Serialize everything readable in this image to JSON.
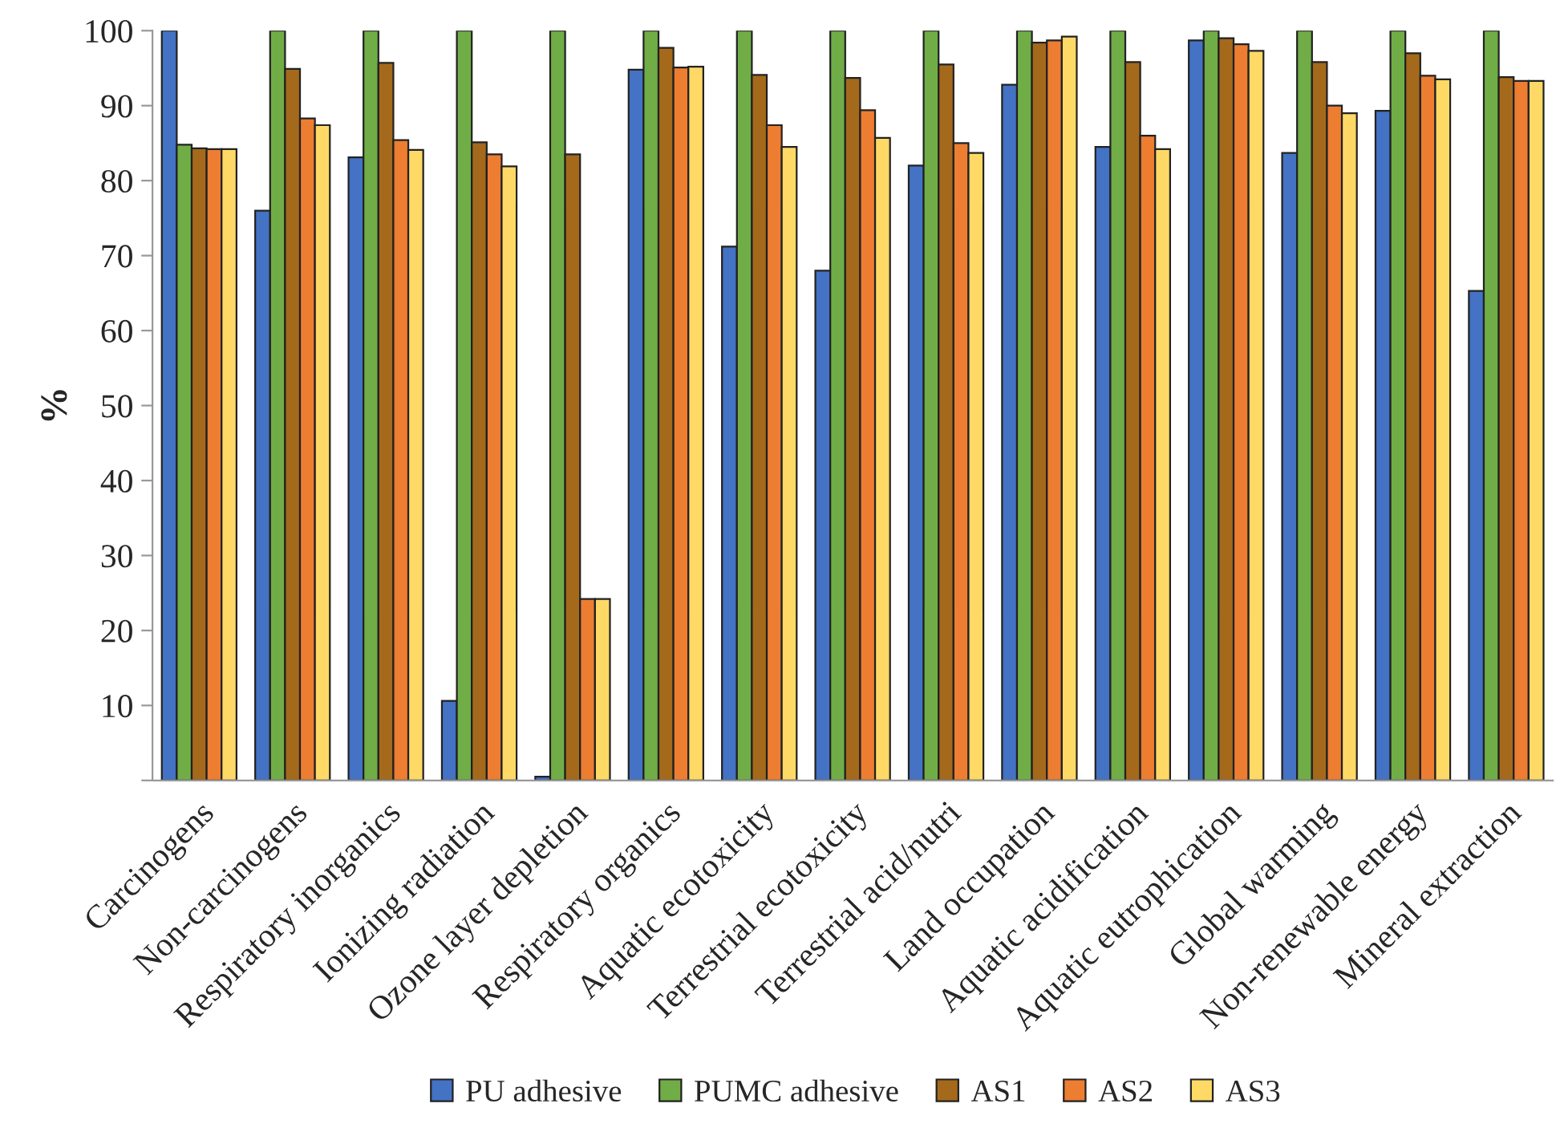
{
  "chart_data": {
    "type": "bar",
    "ylabel": "%",
    "categories": [
      "Carcinogens",
      "Non-carcinogens",
      "Respiratory inorganics",
      "Ionizing radiation",
      "Ozone layer depletion",
      "Respiratory organics",
      "Aquatic ecotoxicity",
      "Terrestrial ecotoxicity",
      "Terrestrial acid/nutri",
      "Land occupation",
      "Aquatic acidification",
      "Aquatic eutrophication",
      "Global warming",
      "Non-renewable energy",
      "Mineral extraction"
    ],
    "series": [
      {
        "name": "PU adhesive",
        "color": "#4472c4",
        "values": [
          100,
          76,
          83.1,
          10.6,
          0.5,
          94.8,
          71.2,
          68,
          82,
          92.8,
          84.5,
          98.7,
          83.7,
          89.3,
          65.3
        ]
      },
      {
        "name": "PUMC adhesive",
        "color": "#70ad47",
        "values": [
          84.8,
          100,
          100,
          100,
          100,
          100,
          100,
          100,
          100,
          100,
          100,
          100,
          100,
          100,
          100
        ]
      },
      {
        "name": "AS1",
        "color": "#a5691b",
        "values": [
          84.3,
          94.9,
          95.7,
          85.1,
          83.5,
          97.7,
          94.1,
          93.7,
          95.5,
          98.4,
          95.8,
          99,
          95.8,
          97,
          93.8
        ]
      },
      {
        "name": "AS2",
        "color": "#ed7d31",
        "values": [
          84.2,
          88.3,
          85.4,
          83.5,
          24.2,
          95.1,
          87.4,
          89.4,
          85,
          98.7,
          86,
          98.2,
          90,
          94,
          93.3
        ]
      },
      {
        "name": "AS3",
        "color": "#ffd966",
        "values": [
          84.2,
          87.4,
          84.1,
          81.9,
          24.2,
          95.2,
          84.5,
          85.7,
          83.7,
          99.2,
          84.2,
          97.3,
          89,
          93.5,
          93.3
        ]
      }
    ],
    "ylim": [
      0,
      100
    ],
    "yticks": [
      {
        "value": 0,
        "label": null
      },
      10,
      20,
      30,
      40,
      50,
      60,
      70,
      80,
      90,
      100
    ],
    "grid": false,
    "legend": "bottom"
  }
}
